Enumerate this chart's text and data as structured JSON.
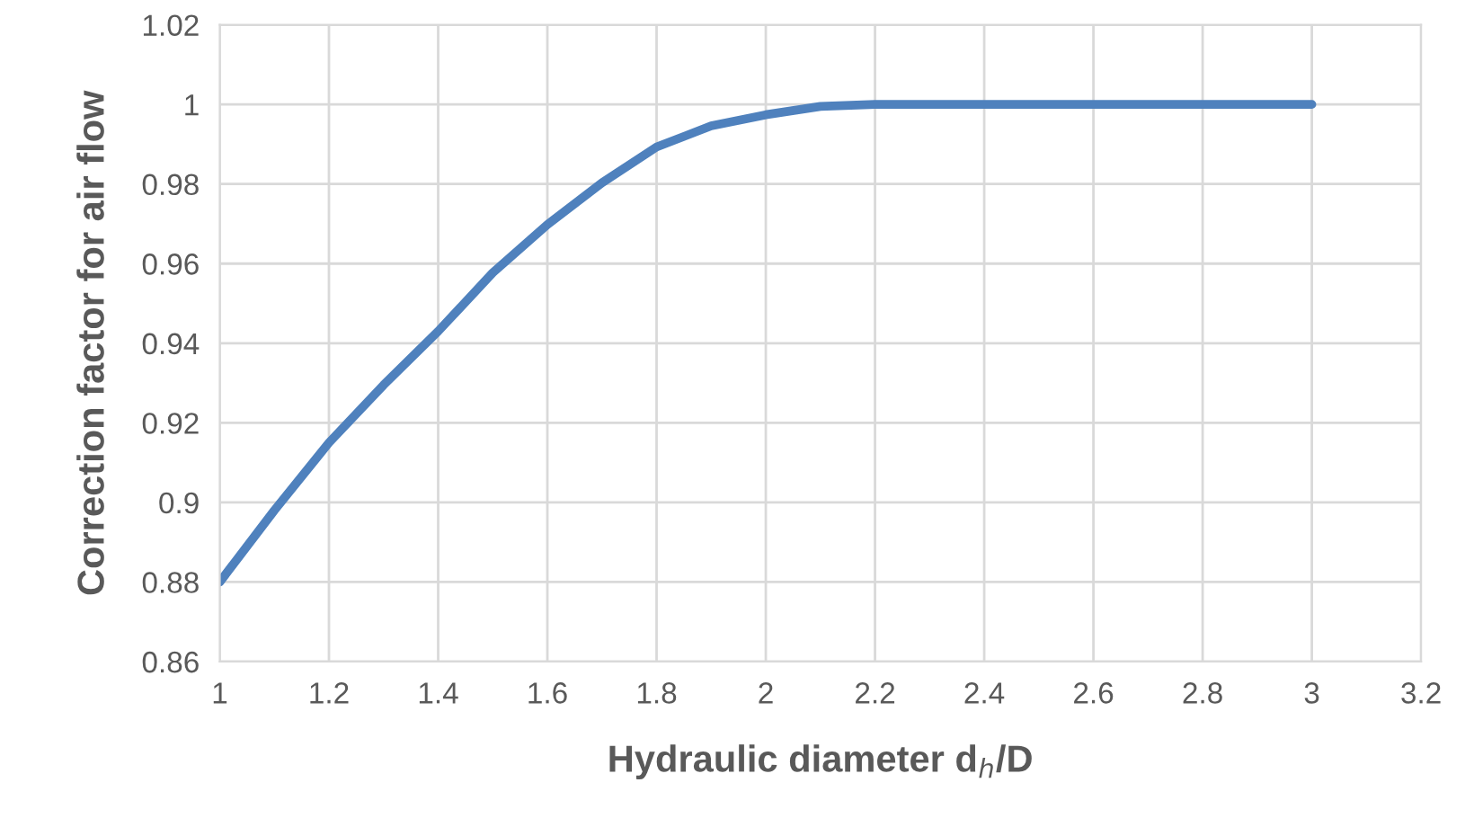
{
  "chart_data": {
    "type": "line",
    "xlabel": "Hydraulic diameter d$_{h}$/D",
    "ylabel": "Correction factor for air flow",
    "x": [
      1.0,
      1.1,
      1.2,
      1.3,
      1.4,
      1.5,
      1.6,
      1.7,
      1.8,
      1.9,
      2.0,
      2.1,
      2.2,
      2.3,
      2.6,
      3.0
    ],
    "series": [
      {
        "color": "#4f81bd",
        "values": [
          0.88,
          0.898,
          0.915,
          0.9295,
          0.943,
          0.9577,
          0.9698,
          0.9803,
          0.9893,
          0.9946,
          0.9974,
          0.9995,
          1.0,
          1.0,
          1.0,
          1.0
        ]
      }
    ],
    "xlim": [
      1,
      3.2
    ],
    "xticks": [
      1,
      1.2,
      1.4,
      1.6,
      1.8,
      2,
      2.2,
      2.4,
      2.6,
      2.8,
      3,
      3.2
    ],
    "ylim": [
      0.86,
      1.02
    ],
    "yticks": [
      0.86,
      0.88,
      0.9,
      0.92,
      0.94,
      0.96,
      0.98,
      1,
      1.02
    ],
    "grid": true,
    "legend": false,
    "marker": "none",
    "line_style": "solid"
  }
}
